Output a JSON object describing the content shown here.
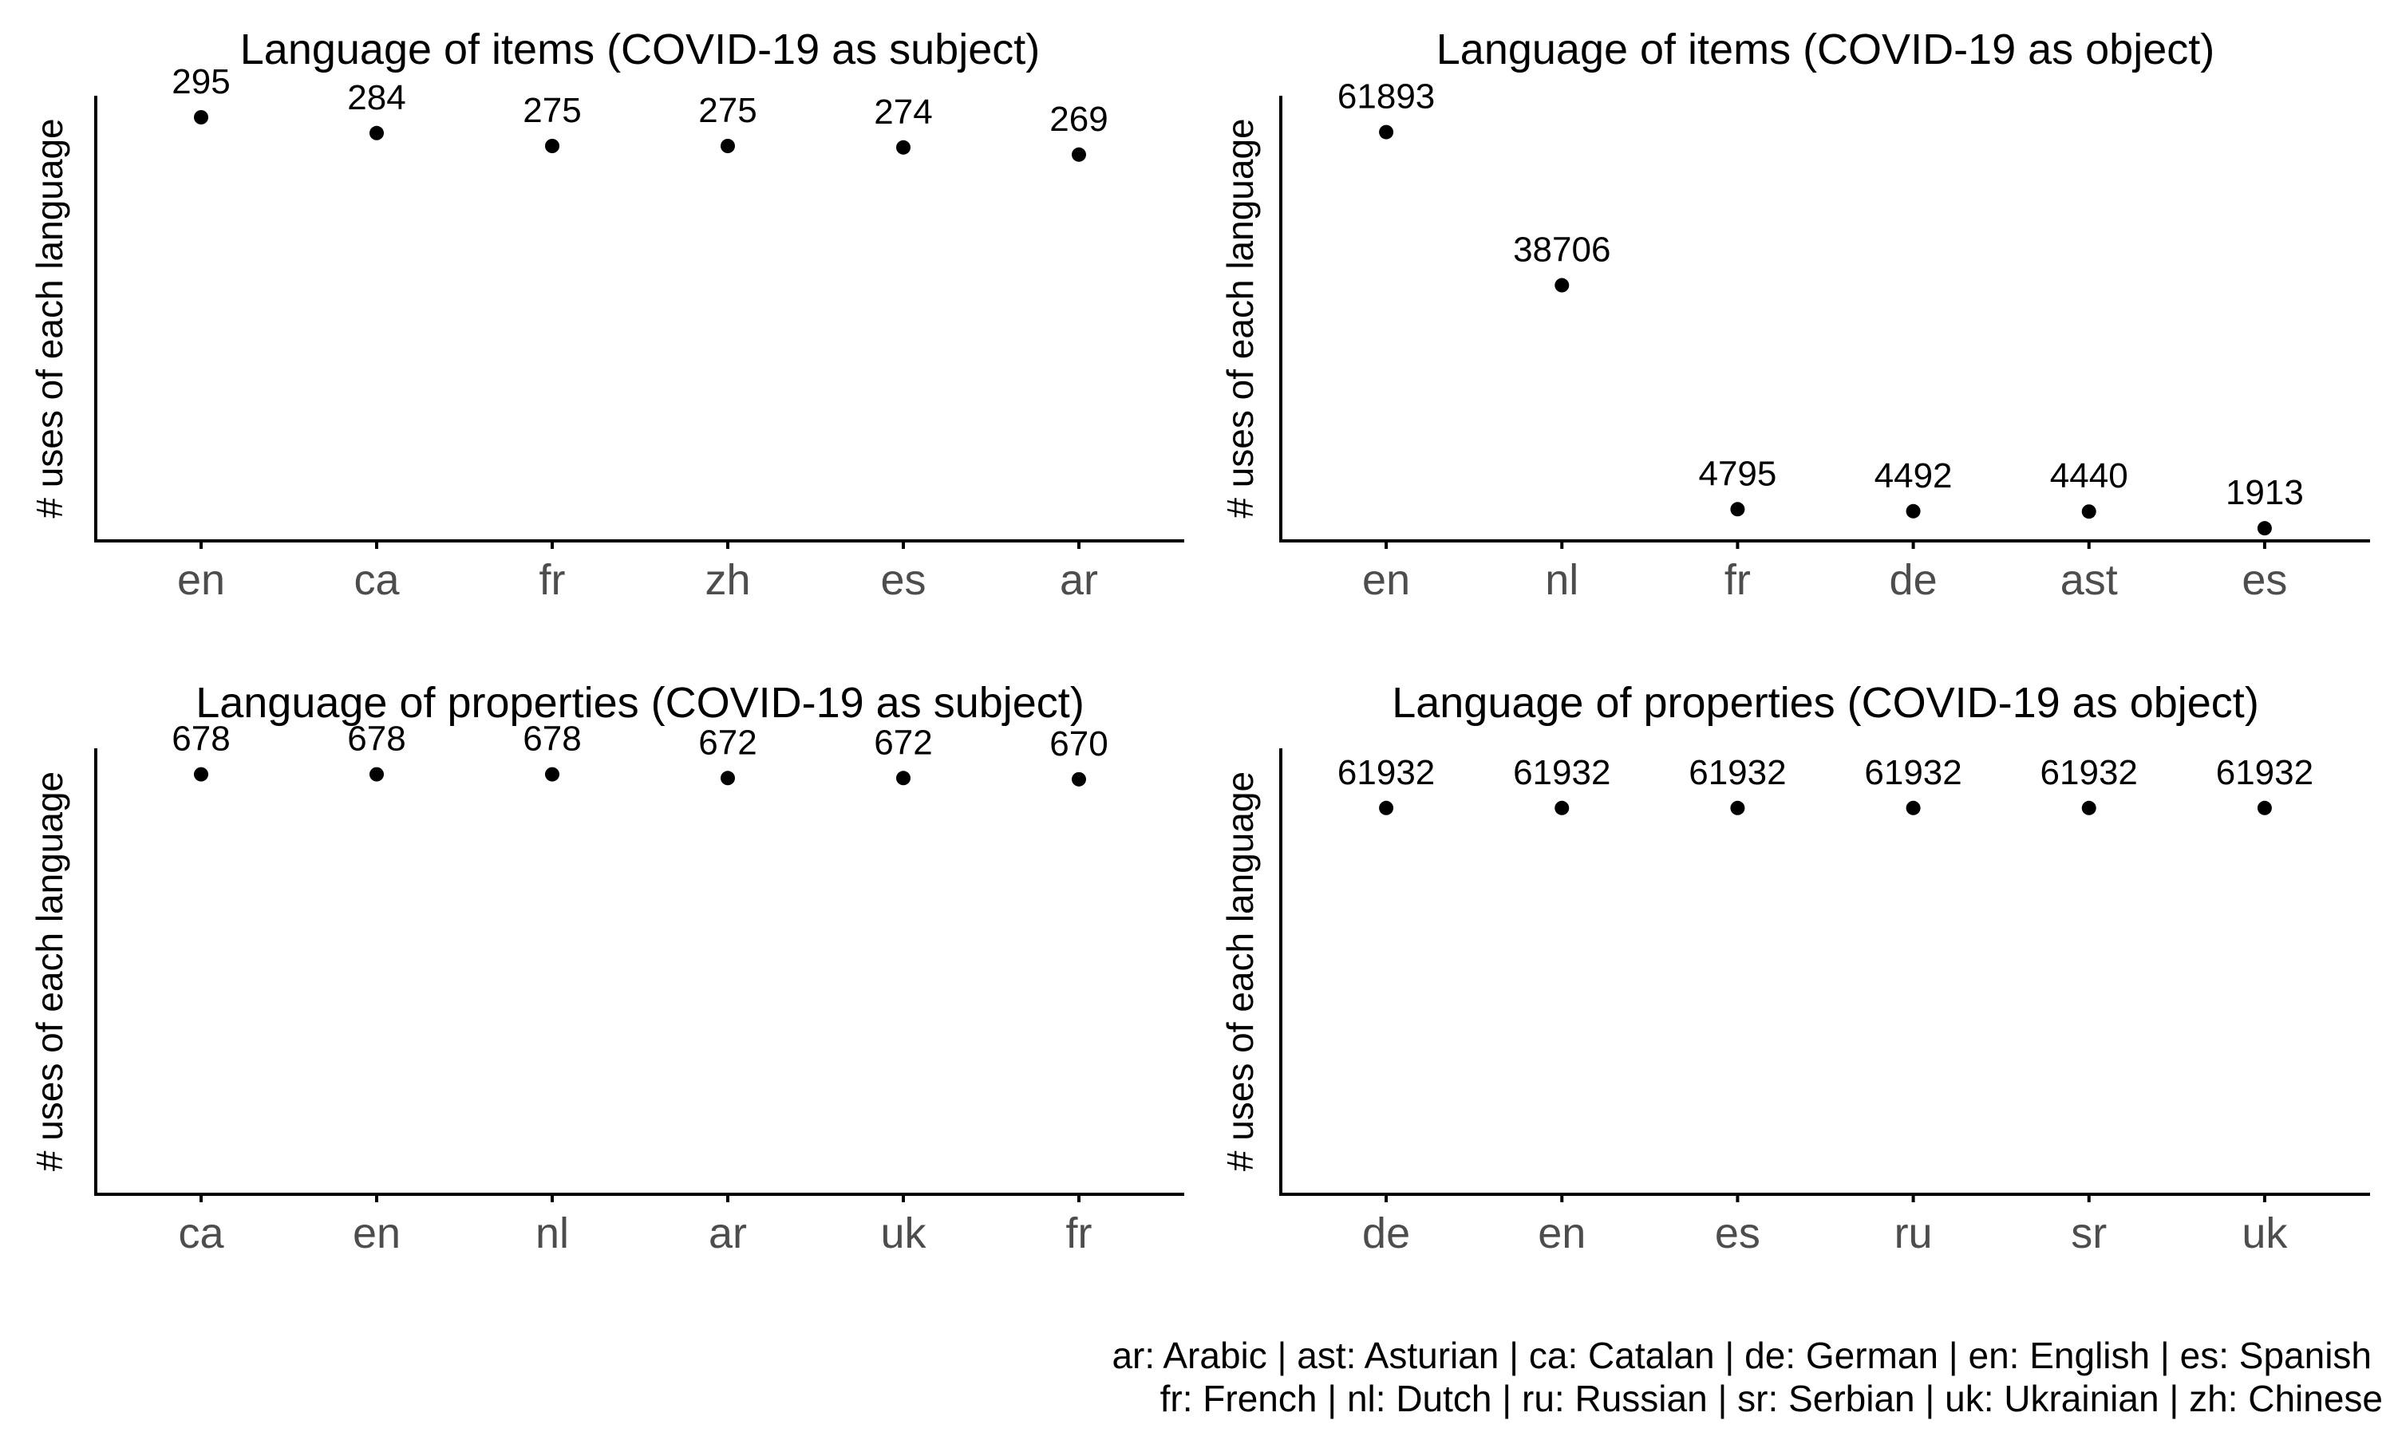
{
  "colors": {
    "point": "#000000",
    "axis": "#000000",
    "tick_label": "#4d4d4d",
    "background": "#ffffff"
  },
  "chart_data": [
    {
      "type": "scatter",
      "title": "Language of items (COVID-19 as subject)",
      "xlabel": "",
      "ylabel": "# uses of each language",
      "categories": [
        "en",
        "ca",
        "fr",
        "zh",
        "es",
        "ar"
      ],
      "values": [
        295,
        284,
        275,
        275,
        274,
        269
      ],
      "data_labels": [
        "295",
        "284",
        "275",
        "275",
        "274",
        "269"
      ],
      "y_scale": "linear",
      "ylim": [
        0,
        310
      ],
      "y_tick_labels_shown": false,
      "grid": false
    },
    {
      "type": "scatter",
      "title": "Language of items (COVID-19 as object)",
      "xlabel": "",
      "ylabel": "# uses of each language",
      "categories": [
        "en",
        "nl",
        "fr",
        "de",
        "ast",
        "es"
      ],
      "values": [
        61893,
        38706,
        4795,
        4492,
        4440,
        1913
      ],
      "data_labels": [
        "61893",
        "38706",
        "4795",
        "4492",
        "4440",
        "1913"
      ],
      "y_scale": "linear",
      "ylim": [
        0,
        67400
      ],
      "y_tick_labels_shown": false,
      "grid": false
    },
    {
      "type": "scatter",
      "title": "Language of properties (COVID-19 as subject)",
      "xlabel": "",
      "ylabel": "# uses of each language",
      "categories": [
        "ca",
        "en",
        "nl",
        "ar",
        "uk",
        "fr"
      ],
      "values": [
        678,
        678,
        678,
        672,
        672,
        670
      ],
      "data_labels": [
        "678",
        "678",
        "678",
        "672",
        "672",
        "670"
      ],
      "y_scale": "linear",
      "ylim": [
        0,
        720
      ],
      "y_tick_labels_shown": false,
      "grid": false
    },
    {
      "type": "scatter",
      "title": "Language of properties (COVID-19 as object)",
      "xlabel": "",
      "ylabel": "# uses of each language",
      "categories": [
        "de",
        "en",
        "es",
        "ru",
        "sr",
        "uk"
      ],
      "values": [
        61932,
        61932,
        61932,
        61932,
        61932,
        61932
      ],
      "data_labels": [
        "61932",
        "61932",
        "61932",
        "61932",
        "61932",
        "61932"
      ],
      "y_scale": "linear",
      "ylim": [
        0,
        71500
      ],
      "y_tick_labels_shown": false,
      "grid": false
    }
  ],
  "caption": {
    "line1": "ar: Arabic | ast: Asturian | ca: Catalan | de: German | en: English | es: Spanish",
    "line2": "fr: French | nl: Dutch | ru: Russian | sr: Serbian | uk: Ukrainian | zh: Chinese"
  }
}
